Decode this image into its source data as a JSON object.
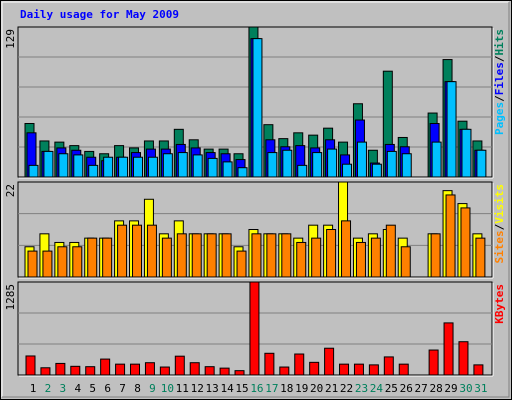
{
  "chart_data": [
    {
      "type": "bar",
      "title": "Daily usage for May 2009",
      "ylim": [
        0,
        129
      ],
      "yticks": [
        129
      ],
      "legend_separator": "/",
      "series": [
        {
          "name": "Hits",
          "color": "#00805c",
          "values": [
            46,
            31,
            30,
            27,
            22,
            20,
            27,
            25,
            31,
            31,
            41,
            32,
            24,
            24,
            20,
            129,
            45,
            33,
            38,
            36,
            42,
            30,
            63,
            23,
            91,
            34,
            0,
            55,
            101,
            48,
            31
          ]
        },
        {
          "name": "Files",
          "color": "#0000ff",
          "values": [
            38,
            22,
            25,
            23,
            17,
            14,
            17,
            21,
            24,
            24,
            28,
            25,
            21,
            20,
            15,
            119,
            32,
            26,
            27,
            25,
            32,
            19,
            49,
            12,
            28,
            26,
            0,
            46,
            82,
            41,
            23
          ]
        },
        {
          "name": "Pages",
          "color": "#00c0ff",
          "values": [
            10,
            22,
            20,
            19,
            10,
            17,
            17,
            17,
            17,
            20,
            21,
            19,
            16,
            13,
            8,
            119,
            21,
            23,
            10,
            21,
            24,
            11,
            30,
            11,
            22,
            20,
            0,
            30,
            82,
            41,
            23
          ]
        }
      ]
    },
    {
      "type": "bar",
      "ylim": [
        0,
        22
      ],
      "yticks": [
        22
      ],
      "legend_separator": "/",
      "series": [
        {
          "name": "Visits",
          "color": "#ffff00",
          "values": [
            7,
            10,
            8,
            8,
            9,
            9,
            13,
            13,
            18,
            10,
            13,
            10,
            10,
            10,
            7,
            11,
            10,
            10,
            9,
            12,
            12,
            22,
            9,
            10,
            11,
            9,
            0,
            10,
            20,
            17,
            10
          ]
        },
        {
          "name": "Sites",
          "color": "#ff8000",
          "values": [
            6,
            6,
            7,
            7,
            9,
            9,
            12,
            12,
            12,
            9,
            10,
            10,
            10,
            10,
            6,
            10,
            10,
            10,
            8,
            9,
            11,
            13,
            8,
            9,
            12,
            7,
            0,
            10,
            19,
            16,
            9
          ]
        }
      ]
    },
    {
      "type": "bar",
      "ylim": [
        0,
        1285
      ],
      "yticks": [
        1285
      ],
      "series": [
        {
          "name": "KBytes",
          "color": "#ff0000",
          "values": [
            263,
            100,
            160,
            120,
            115,
            220,
            150,
            150,
            170,
            110,
            260,
            170,
            115,
            95,
            60,
            1285,
            300,
            110,
            290,
            175,
            370,
            150,
            150,
            140,
            250,
            150,
            0,
            345,
            720,
            460,
            140
          ]
        }
      ],
      "categories": [
        "1",
        "2",
        "3",
        "4",
        "5",
        "6",
        "7",
        "8",
        "9",
        "10",
        "11",
        "12",
        "13",
        "14",
        "15",
        "16",
        "17",
        "18",
        "19",
        "20",
        "21",
        "22",
        "23",
        "24",
        "25",
        "26",
        "27",
        "28",
        "29",
        "30",
        "31"
      ],
      "category_colors": [
        "#000000",
        "#00805c",
        "#00805c",
        "#000000",
        "#000000",
        "#000000",
        "#000000",
        "#000000",
        "#00805c",
        "#00805c",
        "#000000",
        "#000000",
        "#000000",
        "#000000",
        "#000000",
        "#00805c",
        "#00805c",
        "#000000",
        "#000000",
        "#000000",
        "#000000",
        "#000000",
        "#00805c",
        "#00805c",
        "#000000",
        "#000000",
        "#000000",
        "#000000",
        "#000000",
        "#00805c",
        "#00805c"
      ]
    }
  ]
}
